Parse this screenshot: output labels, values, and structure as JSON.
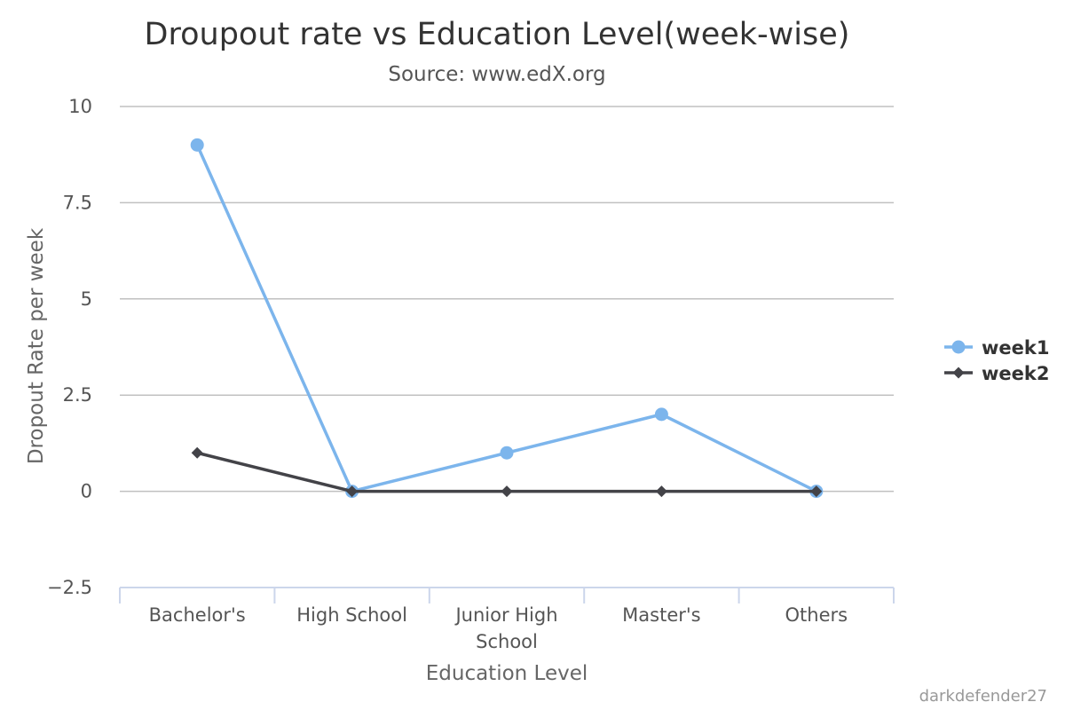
{
  "chart_data": {
    "type": "line",
    "title": "Droupout rate vs Education Level(week-wise)",
    "subtitle": "Source: www.edX.org",
    "xlabel": "Education Level",
    "ylabel": "Dropout Rate per week",
    "categories": [
      "Bachelor's",
      "High School",
      "Junior High School",
      "Master's",
      "Others"
    ],
    "category_lines": [
      [
        "Bachelor's"
      ],
      [
        "High School"
      ],
      [
        "Junior High",
        "School"
      ],
      [
        "Master's"
      ],
      [
        "Others"
      ]
    ],
    "ylim": [
      -2.5,
      10
    ],
    "yticks": [
      -2.5,
      0,
      2.5,
      5,
      7.5,
      10
    ],
    "ytick_labels": [
      "−2.5",
      "0",
      "2.5",
      "5",
      "7.5",
      "10"
    ],
    "grid": true,
    "legend_position": "right",
    "series": [
      {
        "name": "week1",
        "values": [
          9,
          0,
          1,
          2,
          0
        ],
        "color": "#7cb5ec",
        "marker": "circle"
      },
      {
        "name": "week2",
        "values": [
          1,
          0,
          0,
          0,
          0
        ],
        "color": "#434348",
        "marker": "diamond"
      }
    ]
  },
  "credit": "darkdefender27"
}
